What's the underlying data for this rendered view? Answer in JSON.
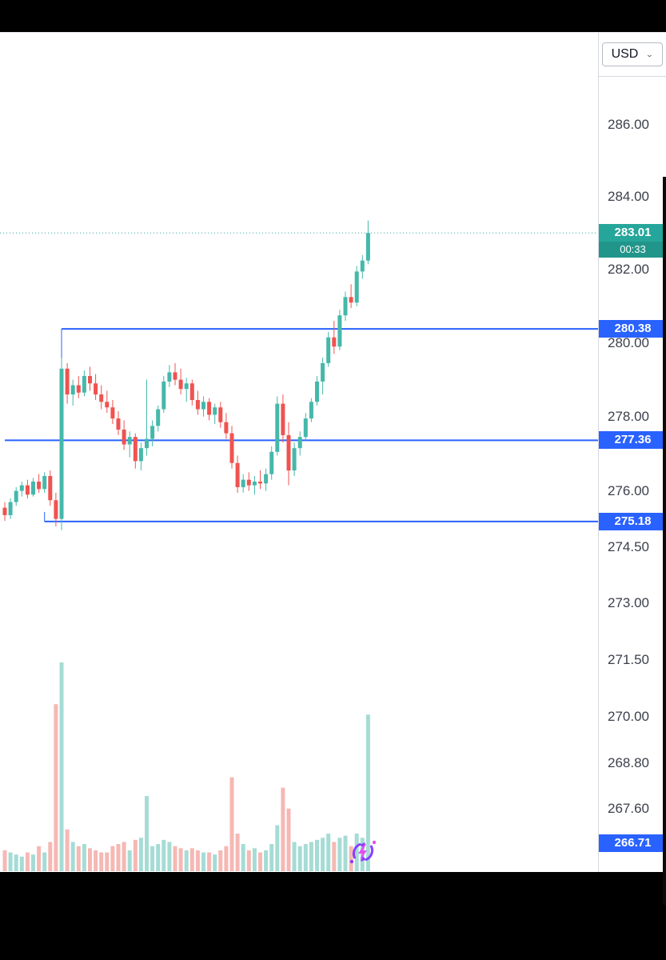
{
  "price_scale": {
    "currency": "USD"
  },
  "colors": {
    "up": "#45b8aa",
    "down": "#ef5350",
    "vol_up": "#a5dcd5",
    "vol_down": "#f5b8b4",
    "level": "#2962ff",
    "current": "#26a69a",
    "axis_text": "#3c404b"
  },
  "price_lines": [
    {
      "price": 283.01,
      "label": "283.01",
      "countdown": "00:33",
      "style": "current"
    },
    {
      "price": 280.38,
      "label": "280.38",
      "style": "level",
      "start_index": 10,
      "tail": "down"
    },
    {
      "price": 277.36,
      "label": "277.36",
      "style": "level",
      "start_index": 0
    },
    {
      "price": 275.18,
      "label": "275.18",
      "style": "level",
      "start_index": 7,
      "tail": "up"
    },
    {
      "price": 266.71,
      "label": "266.71",
      "style": "level",
      "label_only": true
    }
  ],
  "chart_data": {
    "type": "candlestick",
    "yscale": "log",
    "currency": "USD",
    "last_price": 283.01,
    "bar_countdown": "00:33",
    "levels": [
      283.01,
      280.38,
      277.36,
      275.18,
      266.71
    ],
    "y_ticks": [
      {
        "price": 286.0,
        "label": "286.00"
      },
      {
        "price": 284.0,
        "label": "284.00"
      },
      {
        "price": 282.0,
        "label": "282.00"
      },
      {
        "price": 280.0,
        "label": "280.00"
      },
      {
        "price": 278.0,
        "label": "278.00"
      },
      {
        "price": 276.0,
        "label": "276.00"
      },
      {
        "price": 274.5,
        "label": "274.50"
      },
      {
        "price": 273.0,
        "label": "273.00"
      },
      {
        "price": 271.5,
        "label": "271.50"
      },
      {
        "price": 270.0,
        "label": "270.00"
      },
      {
        "price": 268.8,
        "label": "268.80"
      },
      {
        "price": 267.6,
        "label": "267.60"
      }
    ],
    "columns": [
      "open",
      "high",
      "low",
      "close",
      "volume_rel"
    ],
    "candles": [
      [
        275.55,
        275.7,
        275.2,
        275.35,
        10
      ],
      [
        275.35,
        275.8,
        275.25,
        275.7,
        9
      ],
      [
        275.7,
        276.1,
        275.6,
        276.0,
        8
      ],
      [
        276.0,
        276.25,
        275.85,
        276.15,
        7
      ],
      [
        276.15,
        276.3,
        275.8,
        275.9,
        9
      ],
      [
        275.9,
        276.35,
        275.85,
        276.25,
        8
      ],
      [
        276.25,
        276.45,
        275.95,
        276.05,
        12
      ],
      [
        276.05,
        276.5,
        275.95,
        276.4,
        9
      ],
      [
        276.4,
        276.55,
        275.6,
        275.75,
        14
      ],
      [
        275.75,
        275.95,
        275.05,
        275.25,
        80
      ],
      [
        275.25,
        279.6,
        274.95,
        279.3,
        100
      ],
      [
        279.3,
        279.45,
        278.35,
        278.6,
        20
      ],
      [
        278.6,
        279.0,
        278.3,
        278.85,
        14
      ],
      [
        278.85,
        279.1,
        278.5,
        278.65,
        12
      ],
      [
        278.65,
        279.25,
        278.55,
        279.1,
        13
      ],
      [
        279.1,
        279.35,
        278.7,
        278.9,
        11
      ],
      [
        278.9,
        279.15,
        278.45,
        278.6,
        10
      ],
      [
        278.6,
        278.85,
        278.2,
        278.4,
        9
      ],
      [
        278.4,
        278.7,
        278.1,
        278.25,
        9
      ],
      [
        278.25,
        278.45,
        277.8,
        277.95,
        12
      ],
      [
        277.95,
        278.15,
        277.5,
        277.65,
        13
      ],
      [
        277.65,
        277.9,
        277.1,
        277.25,
        14
      ],
      [
        277.25,
        277.6,
        276.9,
        277.45,
        10
      ],
      [
        277.45,
        277.55,
        276.6,
        276.8,
        15
      ],
      [
        276.8,
        277.3,
        276.55,
        277.15,
        16
      ],
      [
        277.15,
        279.0,
        276.95,
        277.4,
        36
      ],
      [
        277.4,
        277.9,
        277.2,
        277.75,
        12
      ],
      [
        277.75,
        278.3,
        277.6,
        278.2,
        13
      ],
      [
        278.2,
        279.1,
        278.1,
        278.95,
        15
      ],
      [
        278.95,
        279.4,
        278.8,
        279.2,
        14
      ],
      [
        279.2,
        279.45,
        278.85,
        279.0,
        12
      ],
      [
        279.0,
        279.3,
        278.6,
        278.75,
        11
      ],
      [
        278.75,
        279.05,
        278.4,
        278.9,
        10
      ],
      [
        278.9,
        279.0,
        278.3,
        278.45,
        11
      ],
      [
        278.45,
        278.7,
        278.05,
        278.2,
        10
      ],
      [
        278.2,
        278.55,
        278.0,
        278.4,
        9
      ],
      [
        278.4,
        278.5,
        277.9,
        278.05,
        9
      ],
      [
        278.05,
        278.35,
        277.8,
        278.25,
        8
      ],
      [
        278.25,
        278.4,
        277.7,
        277.85,
        10
      ],
      [
        277.85,
        278.1,
        277.4,
        277.55,
        12
      ],
      [
        277.55,
        277.75,
        276.6,
        276.75,
        45
      ],
      [
        276.75,
        276.95,
        275.95,
        276.1,
        18
      ],
      [
        276.1,
        276.45,
        275.95,
        276.3,
        13
      ],
      [
        276.3,
        276.5,
        276.0,
        276.15,
        10
      ],
      [
        276.15,
        276.4,
        275.9,
        276.25,
        11
      ],
      [
        276.25,
        276.55,
        276.05,
        276.2,
        9
      ],
      [
        276.2,
        276.6,
        276.0,
        276.45,
        10
      ],
      [
        276.45,
        277.2,
        276.3,
        277.05,
        13
      ],
      [
        277.05,
        278.55,
        276.95,
        278.35,
        22
      ],
      [
        278.35,
        278.6,
        277.3,
        277.5,
        40
      ],
      [
        277.5,
        277.85,
        276.15,
        276.55,
        30
      ],
      [
        276.55,
        277.3,
        276.4,
        277.15,
        14
      ],
      [
        277.15,
        277.6,
        276.95,
        277.45,
        12
      ],
      [
        277.45,
        278.1,
        277.35,
        277.95,
        13
      ],
      [
        277.95,
        278.5,
        277.85,
        278.4,
        14
      ],
      [
        278.4,
        279.1,
        278.3,
        278.95,
        15
      ],
      [
        278.95,
        279.6,
        278.6,
        279.45,
        16
      ],
      [
        279.45,
        280.3,
        279.35,
        280.15,
        18
      ],
      [
        280.15,
        280.6,
        279.7,
        279.9,
        14
      ],
      [
        279.9,
        280.9,
        279.8,
        280.75,
        16
      ],
      [
        280.75,
        281.4,
        280.6,
        281.25,
        17
      ],
      [
        281.25,
        281.6,
        280.95,
        281.1,
        12
      ],
      [
        281.1,
        282.1,
        281.0,
        281.95,
        18
      ],
      [
        281.95,
        282.4,
        281.75,
        282.25,
        16
      ],
      [
        282.25,
        283.35,
        282.15,
        283.01,
        75
      ]
    ]
  }
}
